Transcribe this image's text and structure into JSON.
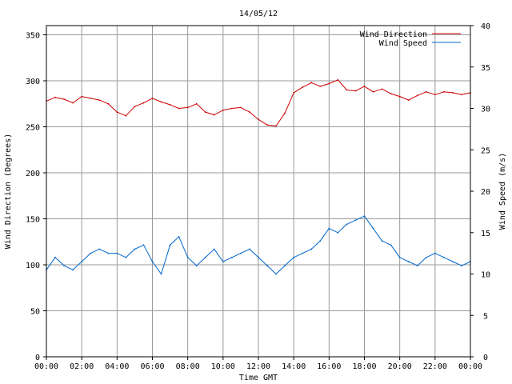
{
  "chart_data": {
    "type": "line",
    "title": "14/05/12",
    "xlabel": "Time GMT",
    "ylabel_left": "Wind Direction (Degrees)",
    "ylabel_right": "Wind Speed (m/s)",
    "x_ticks": [
      "00:00",
      "02:00",
      "04:00",
      "06:00",
      "08:00",
      "10:00",
      "12:00",
      "14:00",
      "16:00",
      "18:00",
      "20:00",
      "22:00",
      "00:00"
    ],
    "xlim_hours": [
      0,
      24
    ],
    "ylim_left": [
      0,
      360
    ],
    "ylim_right": [
      0,
      40
    ],
    "y_ticks_left": [
      0,
      50,
      100,
      150,
      200,
      250,
      300,
      350
    ],
    "y_ticks_right": [
      0,
      5,
      10,
      15,
      20,
      25,
      30,
      35,
      40
    ],
    "grid": true,
    "legend_position": "top-right",
    "series": [
      {
        "name": "Wind Direction",
        "axis": "left",
        "color": "#cc0000",
        "x": [
          0,
          0.5,
          1,
          1.5,
          2,
          2.5,
          3,
          3.5,
          4,
          4.5,
          5,
          5.5,
          6,
          6.5,
          7,
          7.5,
          8,
          8.5,
          9,
          9.5,
          10,
          10.5,
          11,
          11.5,
          12,
          12.5,
          13,
          13.5,
          14,
          14.5,
          15,
          15.5,
          16,
          16.5,
          17,
          17.5,
          18,
          18.5,
          19,
          19.5,
          20,
          20.5,
          21,
          21.5,
          22,
          22.5,
          23,
          23.5,
          24
        ],
        "values": [
          278,
          282,
          280,
          276,
          283,
          281,
          279,
          275,
          266,
          262,
          272,
          276,
          281,
          277,
          274,
          270,
          271,
          275,
          266,
          263,
          268,
          270,
          271,
          266,
          258,
          252,
          251,
          265,
          287,
          293,
          298,
          294,
          297,
          301,
          290,
          289,
          294,
          288,
          291,
          286,
          283,
          279,
          284,
          288,
          285,
          288,
          287,
          285,
          287
        ]
      },
      {
        "name": "Wind Speed",
        "axis": "right",
        "color": "#0066cc",
        "x": [
          0,
          0.5,
          1,
          1.5,
          2,
          2.5,
          3,
          3.5,
          4,
          4.5,
          5,
          5.5,
          6,
          6.5,
          7,
          7.5,
          8,
          8.5,
          9,
          9.5,
          10,
          10.5,
          11,
          11.5,
          12,
          12.5,
          13,
          13.5,
          14,
          14.5,
          15,
          15.5,
          16,
          16.5,
          17,
          17.5,
          18,
          18.5,
          19,
          19.5,
          20,
          20.5,
          21,
          21.5,
          22,
          22.5,
          23,
          23.5,
          24
        ],
        "values": [
          10.5,
          12,
          11,
          10.5,
          11.5,
          12.5,
          13,
          12.5,
          12.5,
          12,
          13,
          13.5,
          11.5,
          10,
          13.5,
          14.5,
          12,
          11,
          12,
          13,
          11.5,
          12,
          12.5,
          13,
          12,
          11,
          10,
          11,
          12,
          12.5,
          13,
          14,
          15.5,
          15,
          16,
          16.5,
          17,
          15.5,
          14,
          13.5,
          12,
          11.5,
          11,
          12,
          12.5,
          12,
          11.5,
          11,
          11.5
        ]
      }
    ]
  }
}
